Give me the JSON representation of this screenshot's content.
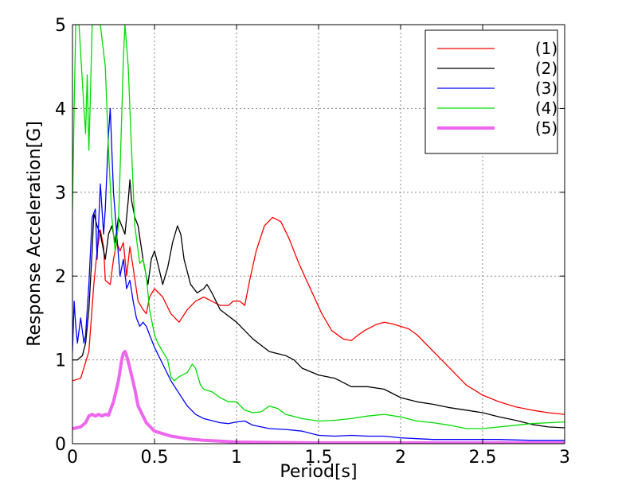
{
  "chart_data": {
    "type": "line",
    "title": "",
    "xlabel": "Period[s]",
    "ylabel": "Response Acceleration[G]",
    "xlim": [
      0,
      3
    ],
    "ylim": [
      0,
      5
    ],
    "x_ticks": [
      "0",
      "0.5",
      "1",
      "1.5",
      "2",
      "2.5",
      "3"
    ],
    "y_ticks": [
      "0",
      "1",
      "2",
      "3",
      "4",
      "5"
    ],
    "grid": true,
    "legend_position": "top-right",
    "series": [
      {
        "name": "(1)",
        "color": "#ff0000",
        "width": 1.3,
        "points": [
          [
            0,
            0.75
          ],
          [
            0.05,
            0.78
          ],
          [
            0.1,
            1.1
          ],
          [
            0.13,
            1.9
          ],
          [
            0.15,
            2.3
          ],
          [
            0.17,
            2.55
          ],
          [
            0.19,
            2.35
          ],
          [
            0.2,
            1.95
          ],
          [
            0.23,
            1.9
          ],
          [
            0.25,
            2.2
          ],
          [
            0.27,
            2.4
          ],
          [
            0.29,
            2.3
          ],
          [
            0.31,
            2.4
          ],
          [
            0.33,
            2.0
          ],
          [
            0.35,
            2.35
          ],
          [
            0.37,
            2.1
          ],
          [
            0.4,
            1.7
          ],
          [
            0.43,
            1.6
          ],
          [
            0.45,
            1.55
          ],
          [
            0.47,
            1.75
          ],
          [
            0.5,
            1.85
          ],
          [
            0.55,
            1.75
          ],
          [
            0.6,
            1.55
          ],
          [
            0.65,
            1.45
          ],
          [
            0.7,
            1.6
          ],
          [
            0.75,
            1.7
          ],
          [
            0.8,
            1.75
          ],
          [
            0.85,
            1.7
          ],
          [
            0.9,
            1.65
          ],
          [
            0.95,
            1.65
          ],
          [
            0.98,
            1.7
          ],
          [
            1.02,
            1.7
          ],
          [
            1.05,
            1.65
          ],
          [
            1.08,
            1.95
          ],
          [
            1.12,
            2.3
          ],
          [
            1.17,
            2.6
          ],
          [
            1.22,
            2.7
          ],
          [
            1.27,
            2.65
          ],
          [
            1.32,
            2.45
          ],
          [
            1.38,
            2.15
          ],
          [
            1.45,
            1.85
          ],
          [
            1.52,
            1.55
          ],
          [
            1.58,
            1.35
          ],
          [
            1.65,
            1.25
          ],
          [
            1.7,
            1.23
          ],
          [
            1.73,
            1.28
          ],
          [
            1.78,
            1.35
          ],
          [
            1.85,
            1.42
          ],
          [
            1.9,
            1.45
          ],
          [
            1.95,
            1.43
          ],
          [
            2.0,
            1.4
          ],
          [
            2.05,
            1.37
          ],
          [
            2.1,
            1.3
          ],
          [
            2.2,
            1.1
          ],
          [
            2.3,
            0.9
          ],
          [
            2.4,
            0.7
          ],
          [
            2.5,
            0.58
          ],
          [
            2.6,
            0.5
          ],
          [
            2.7,
            0.44
          ],
          [
            2.8,
            0.4
          ],
          [
            2.9,
            0.37
          ],
          [
            3.0,
            0.35
          ]
        ]
      },
      {
        "name": "(2)",
        "color": "#000000",
        "width": 1.3,
        "points": [
          [
            0,
            1.0
          ],
          [
            0.03,
            1.0
          ],
          [
            0.06,
            1.05
          ],
          [
            0.08,
            1.2
          ],
          [
            0.1,
            1.6
          ],
          [
            0.12,
            2.3
          ],
          [
            0.13,
            2.75
          ],
          [
            0.15,
            2.6
          ],
          [
            0.17,
            2.5
          ],
          [
            0.2,
            2.2
          ],
          [
            0.22,
            2.5
          ],
          [
            0.24,
            2.6
          ],
          [
            0.26,
            2.4
          ],
          [
            0.28,
            2.7
          ],
          [
            0.3,
            2.6
          ],
          [
            0.32,
            2.5
          ],
          [
            0.34,
            2.9
          ],
          [
            0.35,
            3.15
          ],
          [
            0.36,
            2.9
          ],
          [
            0.38,
            2.7
          ],
          [
            0.4,
            2.6
          ],
          [
            0.43,
            2.2
          ],
          [
            0.46,
            1.9
          ],
          [
            0.48,
            2.2
          ],
          [
            0.5,
            2.3
          ],
          [
            0.52,
            2.15
          ],
          [
            0.55,
            1.9
          ],
          [
            0.58,
            2.1
          ],
          [
            0.61,
            2.4
          ],
          [
            0.64,
            2.6
          ],
          [
            0.66,
            2.5
          ],
          [
            0.68,
            2.2
          ],
          [
            0.72,
            1.9
          ],
          [
            0.76,
            1.8
          ],
          [
            0.8,
            1.85
          ],
          [
            0.82,
            1.9
          ],
          [
            0.85,
            1.8
          ],
          [
            0.9,
            1.6
          ],
          [
            1.0,
            1.45
          ],
          [
            1.1,
            1.25
          ],
          [
            1.2,
            1.1
          ],
          [
            1.3,
            1.05
          ],
          [
            1.35,
            1.0
          ],
          [
            1.4,
            0.9
          ],
          [
            1.5,
            0.82
          ],
          [
            1.6,
            0.78
          ],
          [
            1.7,
            0.68
          ],
          [
            1.8,
            0.68
          ],
          [
            1.9,
            0.65
          ],
          [
            2.0,
            0.55
          ],
          [
            2.1,
            0.5
          ],
          [
            2.2,
            0.47
          ],
          [
            2.3,
            0.43
          ],
          [
            2.4,
            0.4
          ],
          [
            2.5,
            0.37
          ],
          [
            2.6,
            0.32
          ],
          [
            2.7,
            0.28
          ],
          [
            2.8,
            0.23
          ],
          [
            2.9,
            0.2
          ],
          [
            3.0,
            0.19
          ]
        ]
      },
      {
        "name": "(3)",
        "color": "#0000ff",
        "width": 1.3,
        "points": [
          [
            0,
            1.1
          ],
          [
            0.01,
            1.7
          ],
          [
            0.02,
            1.4
          ],
          [
            0.03,
            1.2
          ],
          [
            0.05,
            1.5
          ],
          [
            0.07,
            1.2
          ],
          [
            0.08,
            1.3
          ],
          [
            0.1,
            1.9
          ],
          [
            0.12,
            2.7
          ],
          [
            0.14,
            2.8
          ],
          [
            0.15,
            2.2
          ],
          [
            0.17,
            3.1
          ],
          [
            0.19,
            2.5
          ],
          [
            0.2,
            2.8
          ],
          [
            0.22,
            3.7
          ],
          [
            0.23,
            4.0
          ],
          [
            0.25,
            3.0
          ],
          [
            0.27,
            2.5
          ],
          [
            0.29,
            2.0
          ],
          [
            0.31,
            2.2
          ],
          [
            0.33,
            1.85
          ],
          [
            0.35,
            1.95
          ],
          [
            0.37,
            1.7
          ],
          [
            0.39,
            1.5
          ],
          [
            0.41,
            1.4
          ],
          [
            0.43,
            1.45
          ],
          [
            0.45,
            1.4
          ],
          [
            0.47,
            1.3
          ],
          [
            0.5,
            1.15
          ],
          [
            0.55,
            0.95
          ],
          [
            0.6,
            0.75
          ],
          [
            0.65,
            0.6
          ],
          [
            0.7,
            0.45
          ],
          [
            0.75,
            0.35
          ],
          [
            0.8,
            0.3
          ],
          [
            0.9,
            0.25
          ],
          [
            0.95,
            0.24
          ],
          [
            1.0,
            0.26
          ],
          [
            1.05,
            0.27
          ],
          [
            1.1,
            0.22
          ],
          [
            1.2,
            0.18
          ],
          [
            1.3,
            0.17
          ],
          [
            1.4,
            0.15
          ],
          [
            1.5,
            0.1
          ],
          [
            1.6,
            0.09
          ],
          [
            1.7,
            0.1
          ],
          [
            1.8,
            0.09
          ],
          [
            1.9,
            0.09
          ],
          [
            2.0,
            0.07
          ],
          [
            2.1,
            0.06
          ],
          [
            2.2,
            0.05
          ],
          [
            2.4,
            0.05
          ],
          [
            2.6,
            0.05
          ],
          [
            2.8,
            0.04
          ],
          [
            3.0,
            0.04
          ]
        ]
      },
      {
        "name": "(4)",
        "color": "#00dd00",
        "width": 1.3,
        "points": [
          [
            0,
            2.8
          ],
          [
            0.01,
            4.0
          ],
          [
            0.02,
            5.0
          ],
          [
            0.04,
            5.0
          ],
          [
            0.07,
            4.0
          ],
          [
            0.08,
            3.7
          ],
          [
            0.09,
            4.4
          ],
          [
            0.1,
            3.5
          ],
          [
            0.11,
            4.2
          ],
          [
            0.12,
            5.0
          ],
          [
            0.14,
            5.0
          ],
          [
            0.17,
            5.0
          ],
          [
            0.2,
            4.5
          ],
          [
            0.22,
            3.5
          ],
          [
            0.24,
            2.7
          ],
          [
            0.26,
            2.3
          ],
          [
            0.28,
            2.6
          ],
          [
            0.3,
            3.9
          ],
          [
            0.31,
            4.6
          ],
          [
            0.32,
            5.0
          ],
          [
            0.34,
            4.5
          ],
          [
            0.36,
            3.5
          ],
          [
            0.38,
            2.6
          ],
          [
            0.4,
            2.3
          ],
          [
            0.41,
            2.15
          ],
          [
            0.43,
            2.2
          ],
          [
            0.45,
            2.0
          ],
          [
            0.47,
            1.6
          ],
          [
            0.5,
            1.3
          ],
          [
            0.52,
            1.2
          ],
          [
            0.55,
            1.1
          ],
          [
            0.58,
            1.0
          ],
          [
            0.6,
            0.8
          ],
          [
            0.62,
            0.75
          ],
          [
            0.65,
            0.8
          ],
          [
            0.7,
            0.85
          ],
          [
            0.73,
            0.95
          ],
          [
            0.75,
            0.9
          ],
          [
            0.78,
            0.7
          ],
          [
            0.8,
            0.65
          ],
          [
            0.85,
            0.62
          ],
          [
            0.9,
            0.55
          ],
          [
            0.95,
            0.5
          ],
          [
            1.0,
            0.5
          ],
          [
            1.05,
            0.4
          ],
          [
            1.1,
            0.37
          ],
          [
            1.15,
            0.38
          ],
          [
            1.2,
            0.45
          ],
          [
            1.25,
            0.42
          ],
          [
            1.3,
            0.35
          ],
          [
            1.4,
            0.3
          ],
          [
            1.5,
            0.27
          ],
          [
            1.6,
            0.28
          ],
          [
            1.7,
            0.3
          ],
          [
            1.8,
            0.33
          ],
          [
            1.9,
            0.35
          ],
          [
            2.0,
            0.32
          ],
          [
            2.1,
            0.27
          ],
          [
            2.2,
            0.25
          ],
          [
            2.3,
            0.22
          ],
          [
            2.4,
            0.18
          ],
          [
            2.5,
            0.18
          ],
          [
            2.6,
            0.2
          ],
          [
            2.7,
            0.22
          ],
          [
            2.8,
            0.24
          ],
          [
            2.9,
            0.25
          ],
          [
            3.0,
            0.26
          ]
        ]
      },
      {
        "name": "(5)",
        "color": "#ee66ee",
        "width": 4,
        "points": [
          [
            0,
            0.18
          ],
          [
            0.05,
            0.2
          ],
          [
            0.08,
            0.25
          ],
          [
            0.1,
            0.33
          ],
          [
            0.12,
            0.35
          ],
          [
            0.14,
            0.33
          ],
          [
            0.16,
            0.35
          ],
          [
            0.18,
            0.33
          ],
          [
            0.2,
            0.35
          ],
          [
            0.22,
            0.34
          ],
          [
            0.25,
            0.5
          ],
          [
            0.28,
            0.75
          ],
          [
            0.3,
            1.0
          ],
          [
            0.31,
            1.08
          ],
          [
            0.32,
            1.1
          ],
          [
            0.33,
            1.05
          ],
          [
            0.35,
            0.9
          ],
          [
            0.38,
            0.65
          ],
          [
            0.4,
            0.45
          ],
          [
            0.45,
            0.25
          ],
          [
            0.5,
            0.15
          ],
          [
            0.6,
            0.09
          ],
          [
            0.7,
            0.06
          ],
          [
            0.8,
            0.04
          ],
          [
            1.0,
            0.02
          ],
          [
            1.2,
            0.015
          ],
          [
            1.5,
            0.01
          ],
          [
            2.0,
            0.01
          ],
          [
            2.5,
            0.01
          ],
          [
            3.0,
            0.01
          ]
        ]
      }
    ]
  }
}
